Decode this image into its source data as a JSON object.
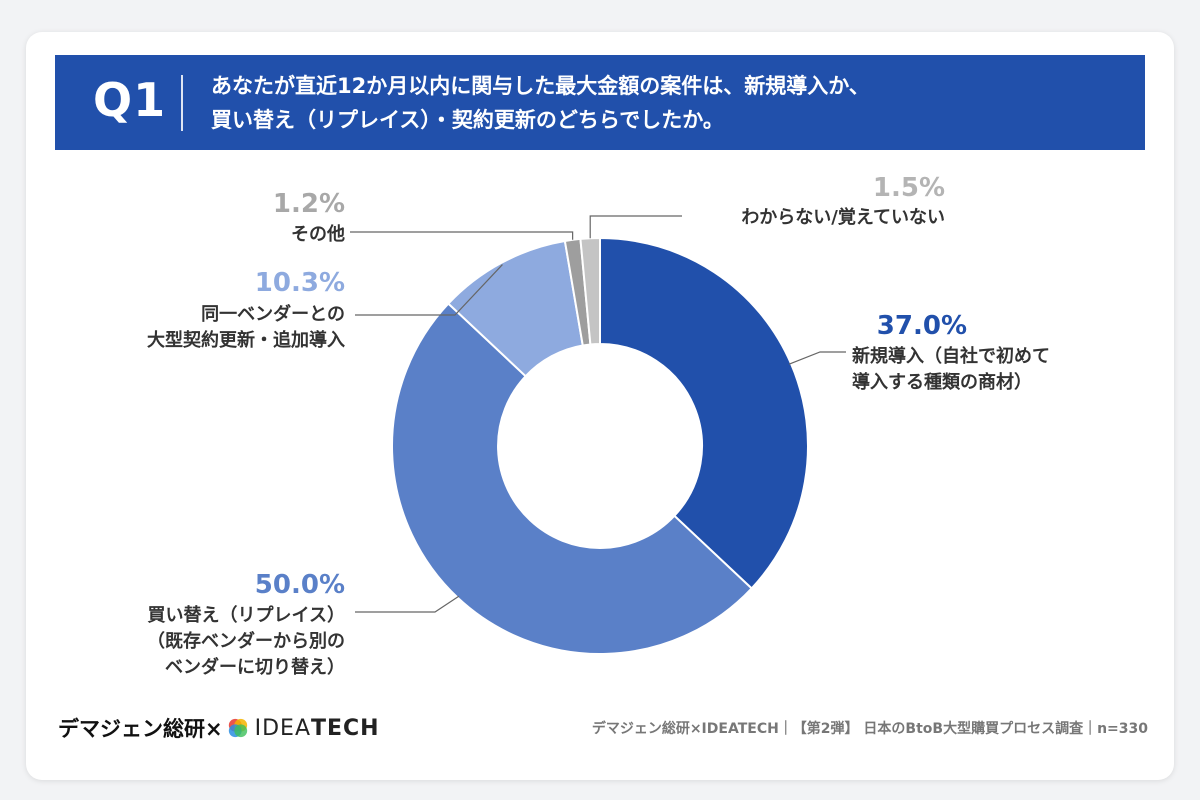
{
  "header": {
    "q_label": "Q1",
    "question_line1": "あなたが直近12か月以内に関与した最大金額の案件は、新規導入か、",
    "question_line2": "買い替え（リプレイス）・契約更新のどちらでしたか。"
  },
  "chart_data": {
    "type": "pie",
    "donut": true,
    "slices": [
      {
        "value": 37.0,
        "pct_label": "37.0%",
        "label_lines": [
          "新規導入（自社で初めて",
          "導入する種類の商材）"
        ],
        "color": "#2150ab",
        "pct_color": "#2150ab"
      },
      {
        "value": 50.0,
        "pct_label": "50.0%",
        "label_lines": [
          "買い替え（リプレイス）",
          "（既存ベンダーから別の",
          "ベンダーに切り替え）"
        ],
        "color": "#5a80c8",
        "pct_color": "#5a80c8"
      },
      {
        "value": 10.3,
        "pct_label": "10.3%",
        "label_lines": [
          "同一ベンダーとの",
          "大型契約更新・追加導入"
        ],
        "color": "#8eaadf",
        "pct_color": "#8eaadf"
      },
      {
        "value": 1.2,
        "pct_label": "1.2%",
        "label_lines": [
          "その他"
        ],
        "color": "#9e9e9e",
        "pct_color": "#a8a8a8"
      },
      {
        "value": 1.5,
        "pct_label": "1.5%",
        "label_lines": [
          "わからない/覚えていない"
        ],
        "color": "#c4c4c4",
        "pct_color": "#b4b4b4"
      }
    ]
  },
  "footer": {
    "brand_prefix": "デマジェン総研×",
    "brand_idea": "IDEA",
    "brand_tech": "TECH",
    "source": "デマジェン総研×IDEATECH｜【第2弾】 日本のBtoB大型購買プロセス調査｜n=330"
  }
}
